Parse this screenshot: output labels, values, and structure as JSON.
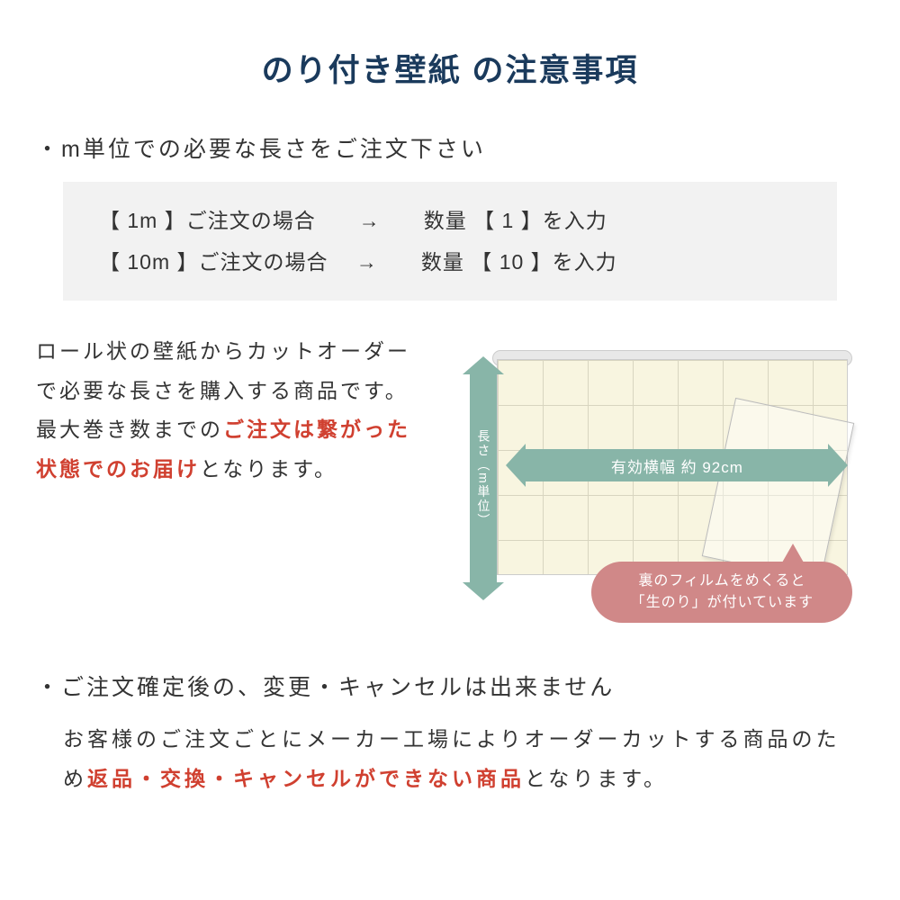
{
  "title": "のり付き壁紙 の注意事項",
  "section1": {
    "heading": "・m単位での必要な長さをご注文下さい",
    "example1": "【 1m 】ご注文の場合　　→　　数量 【 1 】を入力",
    "example2": "【 10m 】ご注文の場合　 →　　数量 【 10 】を入力"
  },
  "description": {
    "part1": "ロール状の壁紙からカットオーダーで必要な長さを購入する商品です。",
    "part2": "最大巻き数までの",
    "highlight": "ご注文は繋がった状態でのお届け",
    "part3": "となります。"
  },
  "diagram": {
    "vertical_arrow_label": "長さ（m単位）",
    "horizontal_arrow_label": "有効横幅 約 92cm",
    "bubble_line1": "裏のフィルムをめくると",
    "bubble_line2": "「生のり」が付いています",
    "colors": {
      "arrow": "#88b5a8",
      "bubble": "#d08888",
      "paper": "#f8f5e0"
    }
  },
  "section2": {
    "heading": "・ご注文確定後の、変更・キャンセルは出来ません",
    "text_part1": "お客様のご注文ごとにメーカー工場によりオーダーカットする商品のため",
    "highlight": "返品・交換・キャンセルができない商品",
    "text_part2": "となります。"
  },
  "colors": {
    "title": "#1a3a5c",
    "text": "#333333",
    "highlight": "#d04030",
    "example_bg": "#f2f2f2"
  }
}
